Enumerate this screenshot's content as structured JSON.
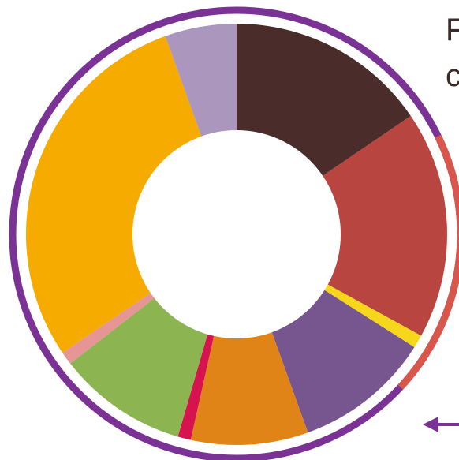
{
  "chart_data": {
    "type": "pie",
    "title": "",
    "heading_lines": [
      "F",
      "c"
    ],
    "slices": [
      {
        "value": 15.5,
        "color": "#4a2d2a"
      },
      {
        "value": 17.5,
        "color": "#b8453f"
      },
      {
        "value": 1.0,
        "color": "#f7d71c"
      },
      {
        "value": 10.5,
        "color": "#77568f"
      },
      {
        "value": 9.0,
        "color": "#e18417"
      },
      {
        "value": 1.0,
        "color": "#d6124f"
      },
      {
        "value": 10.0,
        "color": "#8cb451"
      },
      {
        "value": 1.0,
        "color": "#e59594"
      },
      {
        "value": 29.0,
        "color": "#f6ab00"
      },
      {
        "value": 5.5,
        "color": "#ab97bd"
      }
    ],
    "colors": {
      "outer_ring": "#7b3295",
      "side_ring": "#d9564b",
      "arrow": "#7b3295"
    }
  }
}
